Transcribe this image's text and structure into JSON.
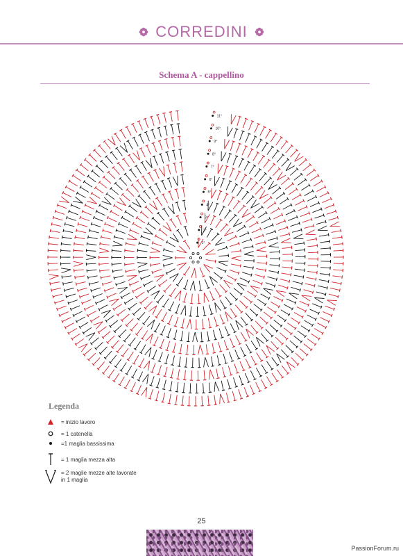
{
  "header": {
    "title": "CORREDINI"
  },
  "section": {
    "title": "Schema A - cappellino"
  },
  "chart": {
    "row_labels": [
      "1°",
      "2°",
      "3°",
      "4°",
      "5°",
      "6°",
      "7°",
      "8°",
      "9°",
      "10°",
      "11°"
    ],
    "colors": {
      "red": "#d2232a",
      "black": "#1a1a1a"
    }
  },
  "legend": {
    "title": "Legenda",
    "items": [
      {
        "icon": "start-triangle-icon",
        "text": "= inizio lavoro"
      },
      {
        "icon": "chain-circle-icon",
        "text": "= 1 catenella"
      },
      {
        "icon": "slip-stitch-dot-icon",
        "text": "=1 maglia bassissima"
      },
      {
        "icon": "half-double-crochet-icon",
        "text": "= 1 maglia mezza alta"
      },
      {
        "icon": "v-stitch-icon",
        "text": "= 2 maglie mezze alte lavorate in 1 maglia"
      }
    ]
  },
  "footer": {
    "page_number": "25",
    "watermark": "PassionForum.ru"
  }
}
